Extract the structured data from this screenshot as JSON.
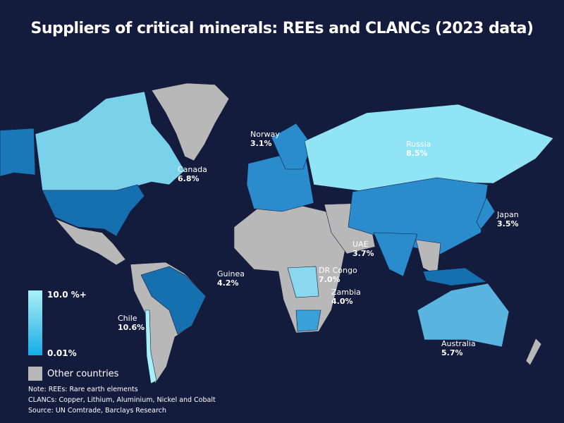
{
  "title": "Suppliers of critical minerals: REEs and CLANCs (2023 data)",
  "legend": {
    "scale_max": "10.0 %+",
    "scale_min": "0.01%",
    "other_label": "Other countries",
    "colors": {
      "high": "#a8f0f8",
      "low": "#12aee8",
      "other": "#b8b8b8",
      "background": "#141c3d"
    }
  },
  "countries": [
    {
      "name": "Canada",
      "share": "6.8%"
    },
    {
      "name": "Norway",
      "share": "3.1%"
    },
    {
      "name": "Russia",
      "share": "8.5%"
    },
    {
      "name": "Japan",
      "share": "3.5%"
    },
    {
      "name": "UAE",
      "share": "3.7%"
    },
    {
      "name": "Guinea",
      "share": "4.2%"
    },
    {
      "name": "DR Congo",
      "share": "7.0%"
    },
    {
      "name": "Zambia",
      "share": "4.0%"
    },
    {
      "name": "Chile",
      "share": "10.6%"
    },
    {
      "name": "Australia",
      "share": "5.7%"
    }
  ],
  "notes": [
    "Note: REEs: Rare earth elements",
    "CLANCs: Copper, Lithium, Aluminium, Nickel and Cobalt",
    "Source: UN Comtrade, Barclays Research"
  ]
}
